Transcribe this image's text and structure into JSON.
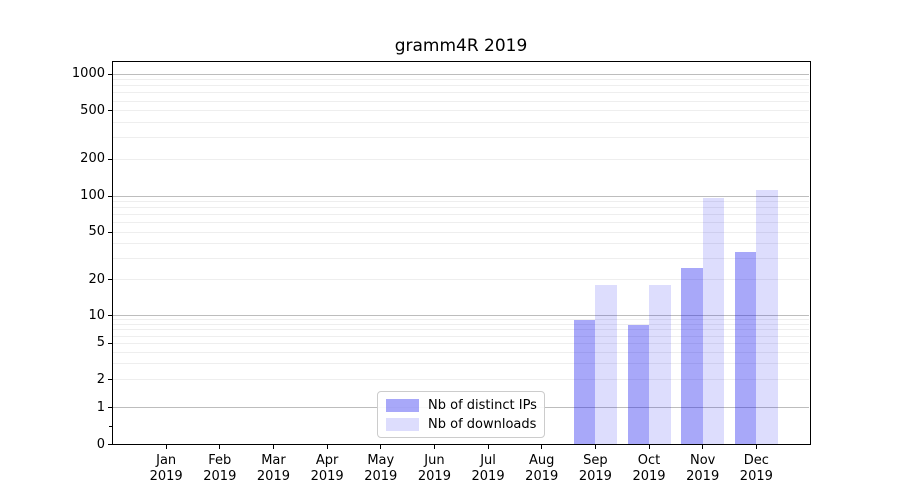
{
  "chart_data": {
    "type": "bar",
    "title": "gramm4R 2019",
    "categories": [
      "Jan",
      "Feb",
      "Mar",
      "Apr",
      "May",
      "Jun",
      "Jul",
      "Aug",
      "Sep",
      "Oct",
      "Nov",
      "Dec"
    ],
    "year_label": "2019",
    "series": [
      {
        "name": "Nb of distinct IPs",
        "color": "rgba(20,20,240,0.37)",
        "values": [
          0,
          0,
          0,
          0,
          0,
          0,
          0,
          0,
          9,
          8,
          25,
          34
        ]
      },
      {
        "name": "Nb of downloads",
        "color": "rgba(20,20,240,0.145)",
        "values": [
          0,
          0,
          0,
          0,
          0,
          0,
          0,
          0,
          18,
          18,
          97,
          112
        ]
      }
    ],
    "yticks": [
      0,
      1,
      2,
      5,
      10,
      20,
      50,
      100,
      200,
      500,
      1000
    ],
    "major_gridlines": [
      1,
      10,
      100,
      1000
    ],
    "yscale": "log-above-1-linear-below",
    "ylim": [
      0,
      1278
    ],
    "grid": true,
    "legend_position": "lower center"
  },
  "colors": {
    "background": "#ffffff",
    "axis": "#000000",
    "major_grid": "#bdbdbd",
    "minor_grid": "#eeeeee",
    "bar_distinct_ips": "rgba(20,20,240,0.37)",
    "bar_downloads": "rgba(20,20,240,0.145)"
  }
}
